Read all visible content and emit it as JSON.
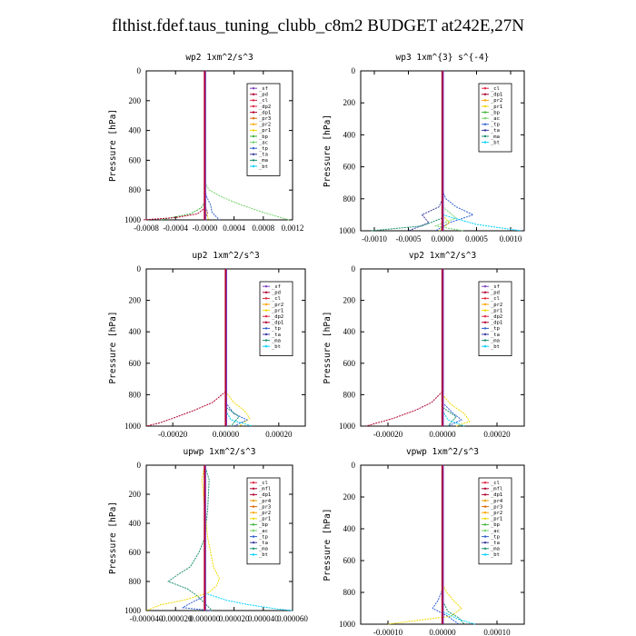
{
  "title": "flthist.fdef.taus_tuning_clubb_c8m2  BUDGET at242E,27N",
  "term_colors": {
    "_sf": "#7f3fbf",
    "_pd": "#b2002f",
    "_cl": "#e0263f",
    "_dp1": "#b2002f",
    "_dp2": "#e0263f",
    "_pr1": "#f0d800",
    "_pr2": "#ffa500",
    "_pr3": "#d96a00",
    "_pr4": "#e8a000",
    "_bp": "#3cb33c",
    "_ac": "#73d36a",
    "_tp": "#2f5fd0",
    "_ta": "#3a3aa0",
    "_ma": "#1a9070",
    "_bt": "#00d0ff",
    "_mfl": "#b2002f"
  },
  "chart_data": [
    {
      "type": "line",
      "title": "wp2   1xm^2/s^3",
      "ylabel": "Pressure  [hPa]",
      "xlim": [
        -0.0008,
        0.0012
      ],
      "ylim": [
        1000,
        0
      ],
      "xticks": [
        -0.0008,
        -0.0004,
        0.0,
        0.0004,
        0.0008,
        0.0012
      ],
      "xtick_labels": [
        "-0.0008",
        "-0.0004",
        "-0.0000",
        "0.0004",
        "0.0008",
        "0.0012"
      ],
      "yticks": [
        0,
        200,
        400,
        600,
        800,
        1000
      ],
      "legend": [
        "_sf",
        "_pd",
        "_cl",
        "_dp2",
        "_dp1",
        "_pr3",
        "_pr2",
        "_pr1",
        "_bp",
        "_ac",
        "_tp",
        "_ta",
        "_ma",
        "_bt"
      ],
      "legend_position": "top-right",
      "series": [
        {
          "name": "_ac",
          "p": [
            0,
            750,
            800,
            850,
            900,
            950,
            1000
          ],
          "x": [
            0,
            0,
            6e-05,
            0.00025,
            0.0005,
            0.0008,
            0.00115
          ]
        },
        {
          "name": "_tp",
          "p": [
            0,
            800,
            850,
            900,
            950,
            1000
          ],
          "x": [
            0,
            0,
            3e-05,
            8e-05,
            0.0001,
            0.0002
          ]
        },
        {
          "name": "_bp",
          "p": [
            0,
            880,
            920,
            960,
            1000
          ],
          "x": [
            0,
            0,
            -5e-05,
            -0.0002,
            -0.0006
          ]
        },
        {
          "name": "_dp1",
          "p": [
            0,
            920,
            960,
            985,
            1000
          ],
          "x": [
            0,
            0,
            -0.0001,
            -0.0004,
            -0.00085
          ]
        },
        {
          "name": "_sf",
          "p": [
            0,
            900,
            950,
            1000
          ],
          "x": [
            0,
            0,
            4e-05,
            0
          ]
        },
        {
          "name": "_pr1",
          "p": [
            0,
            900,
            960,
            1000
          ],
          "x": [
            0,
            0,
            3e-05,
            5e-05
          ]
        }
      ]
    },
    {
      "type": "line",
      "title": "wp3   1xm^{3} s^{-4}",
      "ylabel": "Pressure  [hPa]",
      "xlim": [
        -0.0012,
        0.0012
      ],
      "ylim": [
        1000,
        0
      ],
      "xticks": [
        -0.001,
        -0.0005,
        0.0,
        0.0005,
        0.001
      ],
      "xtick_labels": [
        "-0.0010",
        "-0.0005",
        "0.0000",
        "0.0005",
        "0.0010"
      ],
      "yticks": [
        0,
        200,
        400,
        600,
        800,
        1000
      ],
      "legend": [
        "_cl",
        "_dp1",
        "_pr2",
        "_pr1",
        "_bp",
        "_ac",
        "_tp",
        "_ta",
        "_ma",
        "_bt"
      ],
      "legend_position": "top-right",
      "series": [
        {
          "name": "_tp",
          "p": [
            0,
            750,
            800,
            850,
            900,
            950,
            1000
          ],
          "x": [
            0,
            0,
            5e-05,
            0.0002,
            0.00045,
            0.0001,
            -0.0001
          ]
        },
        {
          "name": "_ta",
          "p": [
            0,
            800,
            850,
            900,
            950,
            1000
          ],
          "x": [
            0,
            0,
            -5e-05,
            -0.0003,
            -0.0002,
            -0.0005
          ]
        },
        {
          "name": "_bt",
          "p": [
            0,
            900,
            960,
            1000
          ],
          "x": [
            0,
            0,
            0.0005,
            0.00115
          ]
        },
        {
          "name": "_ma",
          "p": [
            0,
            920,
            970,
            1000
          ],
          "x": [
            0,
            0,
            -0.0003,
            -0.00105
          ]
        },
        {
          "name": "_ac",
          "p": [
            0,
            850,
            920,
            970,
            1000
          ],
          "x": [
            0,
            0,
            0.0002,
            -0.0001,
            0.0003
          ]
        },
        {
          "name": "_pr1",
          "p": [
            0,
            900,
            950,
            1000
          ],
          "x": [
            0,
            0,
            0.0001,
            -5e-05
          ]
        }
      ]
    },
    {
      "type": "line",
      "title": "up2   1xm^2/s^3",
      "ylabel": "Pressure  [hPa]",
      "xlim": [
        -0.0003,
        0.0003
      ],
      "ylim": [
        1000,
        0
      ],
      "xticks": [
        -0.0002,
        0.0,
        0.0002
      ],
      "xtick_labels": [
        "-0.00020",
        "0.00000",
        "0.00020"
      ],
      "yticks": [
        0,
        200,
        400,
        600,
        800,
        1000
      ],
      "legend": [
        "_sf",
        "_pd",
        "_cl",
        "_pr2",
        "_pr1",
        "_dp2",
        "_dp1",
        "_tp",
        "_ta",
        "_ma",
        "_bt"
      ],
      "legend_position": "top-right",
      "series": [
        {
          "name": "_dp1",
          "p": [
            0,
            780,
            850,
            900,
            950,
            980,
            1000
          ],
          "x": [
            0,
            0,
            -5e-05,
            -0.00012,
            -0.0002,
            -0.00025,
            -0.0003
          ]
        },
        {
          "name": "_pr1",
          "p": [
            0,
            780,
            850,
            900,
            950,
            1000
          ],
          "x": [
            0,
            0,
            3e-05,
            7e-05,
            9e-05,
            5e-05
          ]
        },
        {
          "name": "_tp",
          "p": [
            0,
            850,
            920,
            960,
            1000
          ],
          "x": [
            0,
            0,
            3e-05,
            8e-05,
            3e-05
          ]
        },
        {
          "name": "_ma",
          "p": [
            0,
            880,
            940,
            1000
          ],
          "x": [
            0,
            0,
            5e-05,
            2e-05
          ]
        },
        {
          "name": "_bt",
          "p": [
            0,
            900,
            960,
            1000
          ],
          "x": [
            0,
            0,
            2e-05,
            0.0001
          ]
        }
      ]
    },
    {
      "type": "line",
      "title": "vp2   1xm^2/s^3",
      "ylabel": "Pressure  [hPa]",
      "xlim": [
        -0.0003,
        0.0003
      ],
      "ylim": [
        1000,
        0
      ],
      "xticks": [
        -0.0002,
        0.0,
        0.0002
      ],
      "xtick_labels": [
        "-0.00020",
        "0.00000",
        "0.00020"
      ],
      "yticks": [
        0,
        200,
        400,
        600,
        800,
        1000
      ],
      "legend": [
        "_sf",
        "_pd",
        "_cl",
        "_pr2",
        "_pr1",
        "_dp2",
        "_dp1",
        "_tp",
        "_ta",
        "_ma",
        "_bt"
      ],
      "legend_position": "top-right",
      "series": [
        {
          "name": "_dp1",
          "p": [
            0,
            780,
            850,
            900,
            950,
            980,
            1000
          ],
          "x": [
            0,
            0,
            -4e-05,
            -0.0001,
            -0.00018,
            -0.00024,
            -0.00028
          ]
        },
        {
          "name": "_pr1",
          "p": [
            0,
            800,
            860,
            920,
            970,
            1000
          ],
          "x": [
            0,
            0,
            3e-05,
            8e-05,
            0.0001,
            5e-05
          ]
        },
        {
          "name": "_tp",
          "p": [
            0,
            850,
            920,
            960,
            1000
          ],
          "x": [
            0,
            0,
            4e-05,
            7e-05,
            2e-05
          ]
        },
        {
          "name": "_ma",
          "p": [
            0,
            880,
            940,
            1000
          ],
          "x": [
            0,
            0,
            5e-05,
            2e-05
          ]
        },
        {
          "name": "_bt",
          "p": [
            0,
            900,
            960,
            1000
          ],
          "x": [
            0,
            0,
            2e-05,
            8e-05
          ]
        }
      ]
    },
    {
      "type": "line",
      "title": "upwp   1xm^2/s^3",
      "ylabel": "Pressure  [hPa]",
      "xlim": [
        -4e-05,
        6e-05
      ],
      "ylim": [
        1000,
        0
      ],
      "xticks": [
        -4e-05,
        -2e-05,
        0.0,
        2e-05,
        4e-05,
        6e-05
      ],
      "xtick_labels": [
        "-0.000040",
        "-0.000020",
        "0.000000",
        "0.000020",
        "0.000040",
        "0.000060"
      ],
      "yticks": [
        0,
        200,
        400,
        600,
        800,
        1000
      ],
      "legend": [
        "_cl",
        "_mfl",
        "_dp1",
        "_pr4",
        "_pr3",
        "_pr2",
        "_pr1",
        "_bp",
        "_ac",
        "_tp",
        "_ta",
        "_ma",
        "_bt"
      ],
      "legend_position": "top-right",
      "series": [
        {
          "name": "_ma",
          "p": [
            0,
            100,
            300,
            500,
            600,
            700,
            750,
            800,
            850,
            900,
            950,
            1000
          ],
          "x": [
            0,
            3e-06,
            2e-06,
            0.0,
            -4e-06,
            -1e-05,
            -1.8e-05,
            -2.5e-05,
            -1.2e-05,
            -5e-06,
            0.0,
            5e-06
          ]
        },
        {
          "name": "_pr1",
          "p": [
            0,
            100,
            300,
            500,
            700,
            780,
            830,
            880,
            930,
            960,
            1000
          ],
          "x": [
            0,
            -2e-06,
            0.0,
            2e-06,
            6e-06,
            1e-05,
            8e-06,
            2e-06,
            -1.5e-05,
            -3e-05,
            -4e-05
          ]
        },
        {
          "name": "_bt",
          "p": [
            0,
            880,
            930,
            960,
            990,
            1000
          ],
          "x": [
            0,
            0,
            1.5e-05,
            3e-05,
            5e-05,
            6e-05
          ]
        },
        {
          "name": "_tp",
          "p": [
            0,
            900,
            950,
            980,
            1000
          ],
          "x": [
            0,
            0,
            -1e-05,
            -1.5e-05,
            4e-06
          ]
        }
      ]
    },
    {
      "type": "line",
      "title": "vpwp   1xm^2/s^3",
      "ylabel": "Pressure  [hPa]",
      "xlim": [
        -0.00015,
        0.00015
      ],
      "ylim": [
        1000,
        0
      ],
      "xticks": [
        -0.0001,
        0.0,
        0.0001
      ],
      "xtick_labels": [
        "-0.00010",
        "0.00000",
        "0.00010"
      ],
      "yticks": [
        0,
        200,
        400,
        600,
        800,
        1000
      ],
      "legend": [
        "_cl",
        "_mfl",
        "_dp1",
        "_pr4",
        "_pr3",
        "_pr2",
        "_pr1",
        "_bp",
        "_ac",
        "_tp",
        "_ta",
        "_ma",
        "_bt"
      ],
      "legend_position": "top-right",
      "series": [
        {
          "name": "_pr1",
          "p": [
            0,
            750,
            800,
            850,
            900,
            950,
            1000
          ],
          "x": [
            0,
            0,
            8e-06,
            2e-05,
            3.5e-05,
            1.5e-05,
            -0.0001
          ]
        },
        {
          "name": "_tp",
          "p": [
            0,
            780,
            850,
            900,
            950,
            1000
          ],
          "x": [
            0,
            0,
            -8e-06,
            -1.8e-05,
            1e-05,
            3e-05
          ]
        },
        {
          "name": "_ma",
          "p": [
            0,
            850,
            920,
            960,
            1000
          ],
          "x": [
            0,
            0,
            1e-05,
            3e-05,
            4e-05
          ]
        },
        {
          "name": "_bt",
          "p": [
            0,
            920,
            970,
            1000
          ],
          "x": [
            0,
            0,
            3e-05,
            6e-05
          ]
        }
      ]
    }
  ]
}
